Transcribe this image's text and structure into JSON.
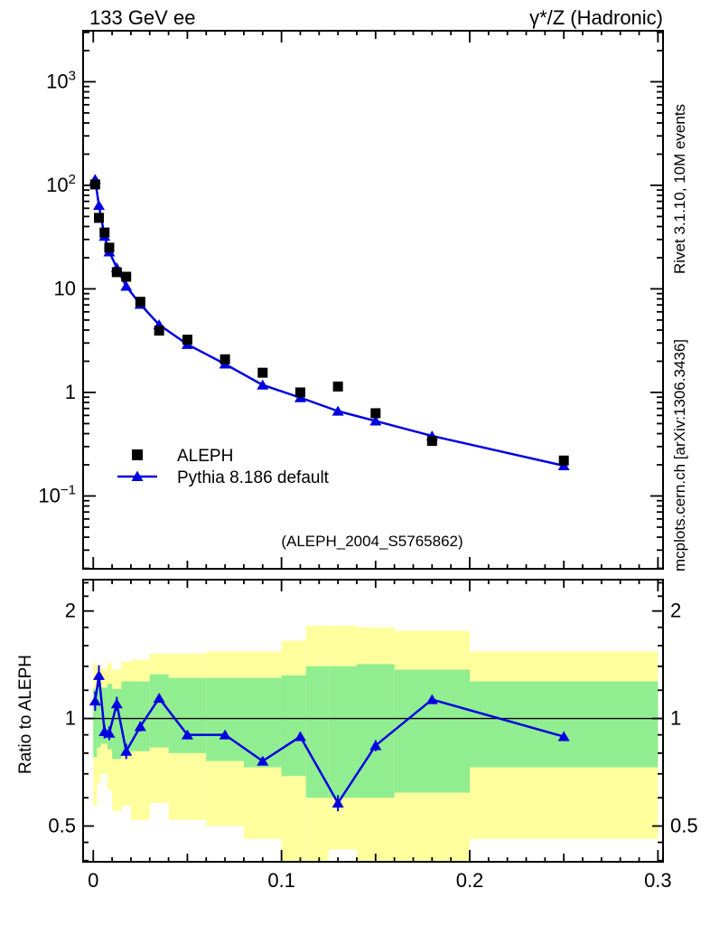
{
  "titles": {
    "left": "133 GeV ee",
    "right": "γ*/Z (Hadronic)"
  },
  "side_labels": {
    "top_right": "Rivet 3.1.10,  10M events",
    "bottom_right": "mcplots.cern.ch [arXiv:1306.3436]"
  },
  "watermark": "(ALEPH_2004_S5765862)",
  "legend": {
    "items": [
      {
        "label": "ALEPH",
        "marker": "black-square"
      },
      {
        "label": "Pythia 8.186 default",
        "marker": "blue-line-triangle"
      }
    ]
  },
  "colors": {
    "data": "#000000",
    "mc": "#0000e0",
    "band_green": "#90ee90",
    "band_yellow": "#ffff9e",
    "watermark": "#b9b9b9",
    "side_label_top": "#565656",
    "side_label_bottom": "#949494"
  },
  "chart_data": [
    {
      "id": "main",
      "type": "scatter",
      "y_scale": "log",
      "x_range": [
        -0.0054,
        0.3027
      ],
      "y_range": [
        0.0198,
        3110
      ],
      "x_ticks": {
        "values": [
          0,
          0.1,
          0.2,
          0.3
        ],
        "labels": [
          "0",
          "0.1",
          "0.2",
          "0.3"
        ],
        "minor_step": 0.01,
        "mid_step": 0.05,
        "labels_shown": false
      },
      "y_ticks": [
        {
          "value": 1000,
          "label": "10",
          "exp": "3"
        },
        {
          "value": 100,
          "label": "10",
          "exp": "2"
        },
        {
          "value": 10,
          "label": "10",
          "exp": ""
        },
        {
          "value": 1,
          "label": "1",
          "exp": ""
        },
        {
          "value": 0.1,
          "label": "10",
          "exp": "−1"
        }
      ],
      "series": [
        {
          "name": "ALEPH",
          "marker": "square",
          "color": "#000000",
          "x": [
            0.001,
            0.003,
            0.006,
            0.0085,
            0.0125,
            0.0175,
            0.025,
            0.035,
            0.05,
            0.07,
            0.09,
            0.11,
            0.13,
            0.15,
            0.18,
            0.25
          ],
          "y": [
            102,
            48.5,
            35,
            25,
            14.5,
            13.1,
            7.5,
            3.95,
            3.23,
            2.09,
            1.55,
            1.0,
            1.14,
            0.63,
            0.34,
            0.22
          ]
        },
        {
          "name": "Pythia 8.186 default",
          "marker": "triangle",
          "line": true,
          "color": "#0000e0",
          "x": [
            0.001,
            0.003,
            0.006,
            0.0085,
            0.0125,
            0.0175,
            0.025,
            0.035,
            0.05,
            0.07,
            0.09,
            0.11,
            0.13,
            0.15,
            0.18,
            0.25
          ],
          "y": [
            114,
            64,
            32.2,
            22.8,
            16.0,
            10.6,
            7.1,
            4.5,
            2.91,
            1.88,
            1.18,
            0.89,
            0.66,
            0.53,
            0.38,
            0.196
          ]
        }
      ]
    },
    {
      "id": "ratio",
      "type": "ratio-line",
      "ylabel": "Ratio to ALEPH",
      "y_scale": "log",
      "x_range": [
        -0.0054,
        0.3027
      ],
      "y_range": [
        0.397,
        2.448
      ],
      "y_ticks": [
        {
          "value": 2,
          "label": "2"
        },
        {
          "value": 1,
          "label": "1"
        },
        {
          "value": 0.5,
          "label": "0.5"
        }
      ],
      "y_minor_ticks": [
        0.4,
        0.45,
        0.6,
        0.7,
        0.8,
        0.9,
        1.2,
        1.4,
        1.6,
        1.8,
        2.2,
        2.4
      ],
      "x_ticks": {
        "values": [
          0,
          0.1,
          0.2,
          0.3
        ],
        "labels": [
          "0",
          "0.1",
          "0.2",
          "0.3"
        ],
        "minor_step": 0.01,
        "mid_step": 0.05,
        "labels_shown": true
      },
      "reference_line": 1,
      "bands": [
        {
          "x0": 0.0,
          "x1": 0.002,
          "green": [
            0.78,
            1.21
          ],
          "yellow": [
            0.57,
            1.43
          ]
        },
        {
          "x0": 0.002,
          "x1": 0.004,
          "green": [
            0.83,
            1.26
          ],
          "yellow": [
            0.66,
            1.41
          ]
        },
        {
          "x0": 0.004,
          "x1": 0.0075,
          "green": [
            0.85,
            1.22
          ],
          "yellow": [
            0.7,
            1.38
          ]
        },
        {
          "x0": 0.0075,
          "x1": 0.01,
          "green": [
            0.82,
            1.25
          ],
          "yellow": [
            0.63,
            1.43
          ]
        },
        {
          "x0": 0.01,
          "x1": 0.015,
          "green": [
            0.77,
            1.21
          ],
          "yellow": [
            0.55,
            1.37
          ]
        },
        {
          "x0": 0.015,
          "x1": 0.02,
          "green": [
            0.79,
            1.27
          ],
          "yellow": [
            0.57,
            1.44
          ]
        },
        {
          "x0": 0.02,
          "x1": 0.03,
          "green": [
            0.81,
            1.27
          ],
          "yellow": [
            0.52,
            1.46
          ]
        },
        {
          "x0": 0.03,
          "x1": 0.04,
          "green": [
            0.83,
            1.33
          ],
          "yellow": [
            0.58,
            1.52
          ]
        },
        {
          "x0": 0.04,
          "x1": 0.06,
          "green": [
            0.8,
            1.3
          ],
          "yellow": [
            0.52,
            1.52
          ]
        },
        {
          "x0": 0.06,
          "x1": 0.08,
          "green": [
            0.76,
            1.3
          ],
          "yellow": [
            0.5,
            1.54
          ]
        },
        {
          "x0": 0.08,
          "x1": 0.1,
          "green": [
            0.73,
            1.3
          ],
          "yellow": [
            0.46,
            1.54
          ]
        },
        {
          "x0": 0.1,
          "x1": 0.113,
          "green": [
            0.69,
            1.32
          ],
          "yellow": [
            0.38,
            1.65
          ]
        },
        {
          "x0": 0.113,
          "x1": 0.125,
          "green": [
            0.6,
            1.4
          ],
          "yellow": [
            0.38,
            1.82
          ]
        },
        {
          "x0": 0.125,
          "x1": 0.14,
          "green": [
            0.6,
            1.4
          ],
          "yellow": [
            0.43,
            1.82
          ]
        },
        {
          "x0": 0.14,
          "x1": 0.16,
          "green": [
            0.6,
            1.42
          ],
          "yellow": [
            0.38,
            1.8
          ]
        },
        {
          "x0": 0.16,
          "x1": 0.2,
          "green": [
            0.62,
            1.37
          ],
          "yellow": [
            0.38,
            1.76
          ]
        },
        {
          "x0": 0.2,
          "x1": 0.3,
          "green": [
            0.73,
            1.27
          ],
          "yellow": [
            0.46,
            1.54
          ]
        }
      ],
      "series": {
        "name": "Pythia 8.186 default / ALEPH",
        "color": "#0000e0",
        "x": [
          0.001,
          0.003,
          0.006,
          0.0085,
          0.0125,
          0.0175,
          0.025,
          0.035,
          0.05,
          0.07,
          0.09,
          0.11,
          0.13,
          0.15,
          0.18,
          0.25
        ],
        "ratio": [
          1.12,
          1.32,
          0.92,
          0.91,
          1.1,
          0.81,
          0.95,
          1.14,
          0.9,
          0.9,
          0.76,
          0.89,
          0.58,
          0.84,
          1.13,
          0.89
        ],
        "err": [
          0.07,
          0.09,
          0.04,
          0.04,
          0.05,
          0.04,
          0.03,
          0.03,
          0.02,
          0.02,
          0.02,
          0.02,
          0.03,
          0.03,
          0.03,
          0.02
        ]
      }
    }
  ]
}
